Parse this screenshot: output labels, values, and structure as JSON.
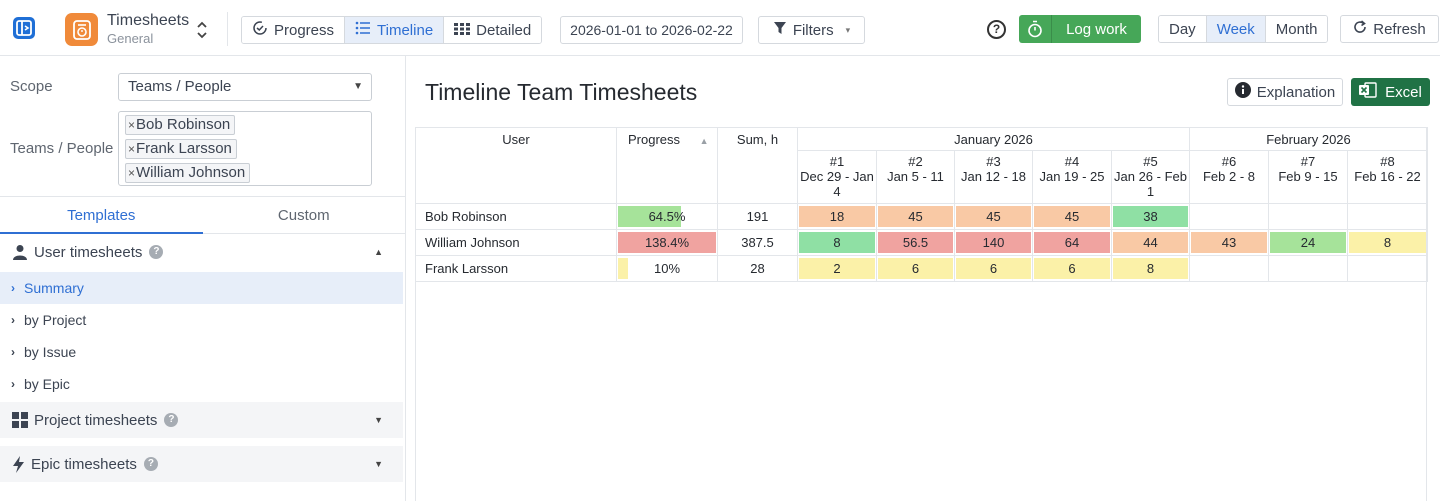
{
  "app": {
    "title": "Timesheets",
    "subtitle": "General"
  },
  "views": [
    {
      "label": "Progress",
      "icon": "gauge-icon",
      "active": false
    },
    {
      "label": "Timeline",
      "icon": "list-icon",
      "active": true
    },
    {
      "label": "Detailed",
      "icon": "grid-icon",
      "active": false
    }
  ],
  "date_range": "2026-01-01 to 2026-02-22",
  "filters_label": "Filters",
  "log_work_label": "Log work",
  "periods": [
    {
      "label": "Day",
      "active": false
    },
    {
      "label": "Week",
      "active": true
    },
    {
      "label": "Month",
      "active": false
    }
  ],
  "refresh_label": "Refresh",
  "left": {
    "scope_label": "Scope",
    "scope_value": "Teams / People",
    "people_label": "Teams / People",
    "people": [
      "Bob Robinson",
      "Frank Larsson",
      "William Johnson"
    ],
    "tabs": [
      "Templates",
      "Custom"
    ],
    "user_section": "User timesheets",
    "user_items": [
      "Summary",
      "by Project",
      "by Issue",
      "by Epic"
    ],
    "project_section": "Project timesheets",
    "epic_section": "Epic timesheets"
  },
  "main": {
    "title": "Timeline Team Timesheets",
    "explanation_label": "Explanation",
    "excel_label": "Excel"
  },
  "table": {
    "col_user": "User",
    "col_progress": "Progress",
    "col_sum": "Sum, h",
    "months": [
      {
        "label": "January 2026",
        "span": 5
      },
      {
        "label": "February 2026",
        "span": 3
      }
    ],
    "weeks": [
      {
        "num": "#1",
        "range": "Dec 29 - Jan 4"
      },
      {
        "num": "#2",
        "range": "Jan 5 - 11"
      },
      {
        "num": "#3",
        "range": "Jan 12 - 18"
      },
      {
        "num": "#4",
        "range": "Jan 19 - 25"
      },
      {
        "num": "#5",
        "range": "Jan 26 - Feb 1"
      },
      {
        "num": "#6",
        "range": "Feb 2 - 8"
      },
      {
        "num": "#7",
        "range": "Feb 9 - 15"
      },
      {
        "num": "#8",
        "range": "Feb 16 - 22"
      }
    ],
    "rows": [
      {
        "user": "Bob Robinson",
        "progress": "64.5%",
        "progress_fraction": 0.645,
        "progress_color": "#a6e39a",
        "sum": "191",
        "weeks": [
          {
            "v": "18",
            "c": "#f9c9a5"
          },
          {
            "v": "45",
            "c": "#f9c9a5"
          },
          {
            "v": "45",
            "c": "#f9c9a5"
          },
          {
            "v": "45",
            "c": "#f9c9a5"
          },
          {
            "v": "38",
            "c": "#8fe0a4"
          },
          {
            "v": "",
            "c": ""
          },
          {
            "v": "",
            "c": ""
          },
          {
            "v": "",
            "c": ""
          }
        ]
      },
      {
        "user": "William Johnson",
        "progress": "138.4%",
        "progress_fraction": 1.0,
        "progress_color": "#f0a3a0",
        "sum": "387.5",
        "weeks": [
          {
            "v": "8",
            "c": "#8fe0a4"
          },
          {
            "v": "56.5",
            "c": "#f0a3a0"
          },
          {
            "v": "140",
            "c": "#f0a3a0"
          },
          {
            "v": "64",
            "c": "#f0a3a0"
          },
          {
            "v": "44",
            "c": "#f9c9a5"
          },
          {
            "v": "43",
            "c": "#f9c9a5"
          },
          {
            "v": "24",
            "c": "#a6e39a"
          },
          {
            "v": "8",
            "c": "#fbf1a8"
          }
        ]
      },
      {
        "user": "Frank Larsson",
        "progress": "10%",
        "progress_fraction": 0.1,
        "progress_color": "#fbf1a8",
        "sum": "28",
        "weeks": [
          {
            "v": "2",
            "c": "#fbf1a8"
          },
          {
            "v": "6",
            "c": "#fbf1a8"
          },
          {
            "v": "6",
            "c": "#fbf1a8"
          },
          {
            "v": "6",
            "c": "#fbf1a8"
          },
          {
            "v": "8",
            "c": "#fbf1a8"
          },
          {
            "v": "",
            "c": ""
          },
          {
            "v": "",
            "c": ""
          },
          {
            "v": "",
            "c": ""
          }
        ]
      }
    ]
  }
}
